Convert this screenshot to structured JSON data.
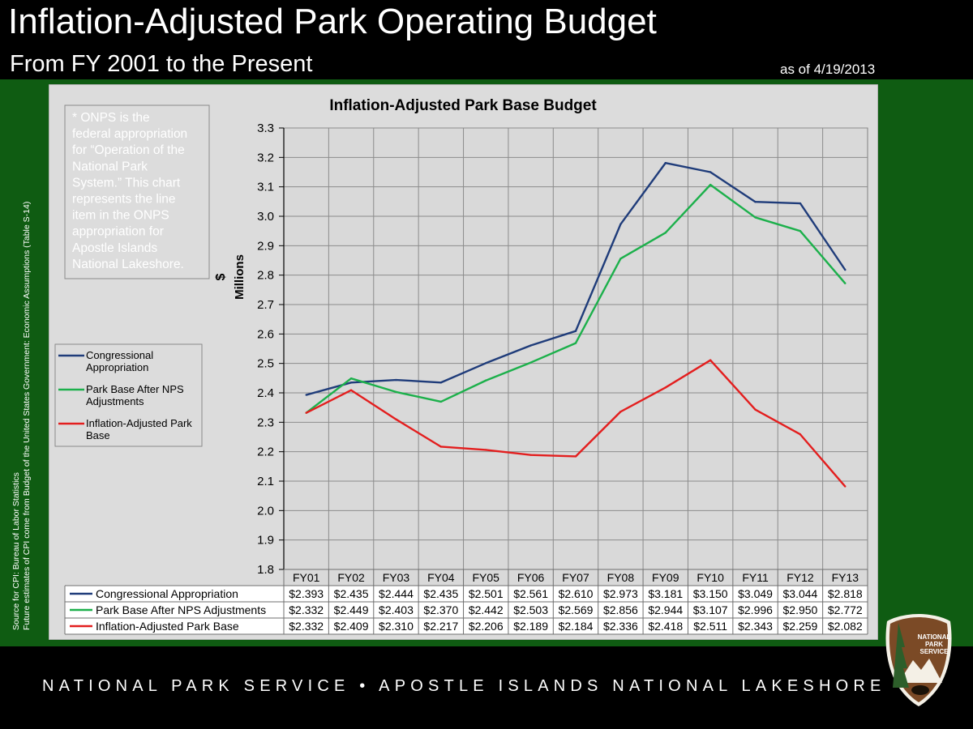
{
  "header": {
    "title": "Inflation-Adjusted Park Operating Budget",
    "subtitle": "From FY 2001 to the Present",
    "as_of": "as of 4/19/2013"
  },
  "note": {
    "lines": [
      "* ONPS is the",
      "federal appropriation",
      "for “Operation of the",
      "National Park",
      "System.”  This chart",
      "represents the line",
      "item in the ONPS",
      "appropriation for",
      "Apostle Islands",
      "National Lakeshore."
    ]
  },
  "source": {
    "line1": "Source for CPI: Bureau of Labor Statistics",
    "line2": "Future estimates of CPI come from Budget of the United States Government: Economic Assumptions (Table S-14)"
  },
  "footer": {
    "left": "NATIONAL PARK SERVICE",
    "separator": "•",
    "right": "APOSTLE ISLANDS NATIONAL LAKESHORE"
  },
  "logo": {
    "lines": [
      "NATIONAL",
      "PARK",
      "SERVICE"
    ]
  },
  "colors": {
    "background": "#000000",
    "band": "#0f5c12",
    "plot_area": "#d9d9d9",
    "congressional": "#1f3c7a",
    "park_base": "#1cb04b",
    "inflation_adjusted": "#e31e1e"
  },
  "chart_data": {
    "type": "line",
    "title": "Inflation-Adjusted Park Base Budget",
    "ylabel_top": "$",
    "ylabel_bottom": "Millions",
    "ylim": [
      1.8,
      3.3
    ],
    "ytick_step": 0.1,
    "yticks": [
      "1.8",
      "1.9",
      "2.0",
      "2.1",
      "2.2",
      "2.3",
      "2.4",
      "2.5",
      "2.6",
      "2.7",
      "2.8",
      "2.9",
      "3.0",
      "3.1",
      "3.2",
      "3.3"
    ],
    "grid": true,
    "legend_position": "left",
    "categories": [
      "FY01",
      "FY02",
      "FY03",
      "FY04",
      "FY05",
      "FY06",
      "FY07",
      "FY08",
      "FY09",
      "FY10",
      "FY11",
      "FY12",
      "FY13"
    ],
    "series": [
      {
        "name": "Congressional Appropriation",
        "legend_lines": [
          "Congressional",
          "Appropriation"
        ],
        "color": "#1f3c7a",
        "values": [
          2.393,
          2.435,
          2.444,
          2.435,
          2.501,
          2.561,
          2.61,
          2.973,
          3.181,
          3.15,
          3.049,
          3.044,
          2.818
        ],
        "table_values": [
          "$2.393",
          "$2.435",
          "$2.444",
          "$2.435",
          "$2.501",
          "$2.561",
          "$2.610",
          "$2.973",
          "$3.181",
          "$3.150",
          "$3.049",
          "$3.044",
          "$2.818"
        ]
      },
      {
        "name": "Park Base After NPS Adjustments",
        "legend_lines": [
          "Park Base After NPS",
          "Adjustments"
        ],
        "color": "#1cb04b",
        "values": [
          2.332,
          2.449,
          2.403,
          2.37,
          2.442,
          2.503,
          2.569,
          2.856,
          2.944,
          3.107,
          2.996,
          2.95,
          2.772
        ],
        "table_values": [
          "$2.332",
          "$2.449",
          "$2.403",
          "$2.370",
          "$2.442",
          "$2.503",
          "$2.569",
          "$2.856",
          "$2.944",
          "$3.107",
          "$2.996",
          "$2.950",
          "$2.772"
        ]
      },
      {
        "name": "Inflation-Adjusted Park Base",
        "legend_lines": [
          "Inflation-Adjusted Park",
          "Base"
        ],
        "color": "#e31e1e",
        "values": [
          2.332,
          2.409,
          2.31,
          2.217,
          2.206,
          2.189,
          2.184,
          2.336,
          2.418,
          2.511,
          2.343,
          2.259,
          2.082
        ],
        "table_values": [
          "$2.332",
          "$2.409",
          "$2.310",
          "$2.217",
          "$2.206",
          "$2.189",
          "$2.184",
          "$2.336",
          "$2.418",
          "$2.511",
          "$2.343",
          "$2.259",
          "$2.082"
        ]
      }
    ]
  }
}
